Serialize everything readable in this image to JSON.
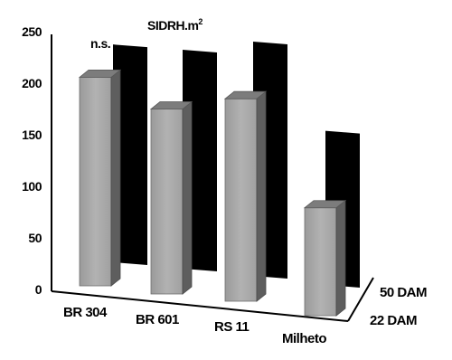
{
  "chart_data": {
    "type": "bar",
    "style": "3d-grouped",
    "title": "SIDRH.m",
    "title_superscript": "2",
    "annotation": "n.s.",
    "categories": [
      "BR 304",
      "BR 601",
      "RS 11",
      "Milheto"
    ],
    "series": [
      {
        "name": "22 DAM",
        "values": [
          203,
          180,
          197,
          105
        ],
        "color": "#a6a6a6"
      },
      {
        "name": "50 DAM",
        "values": [
          212,
          213,
          228,
          150
        ],
        "color": "#000000"
      }
    ],
    "y_ticks": [
      "0",
      "50",
      "100",
      "150",
      "200",
      "250"
    ],
    "ylim": [
      0,
      250
    ],
    "grid": false
  }
}
